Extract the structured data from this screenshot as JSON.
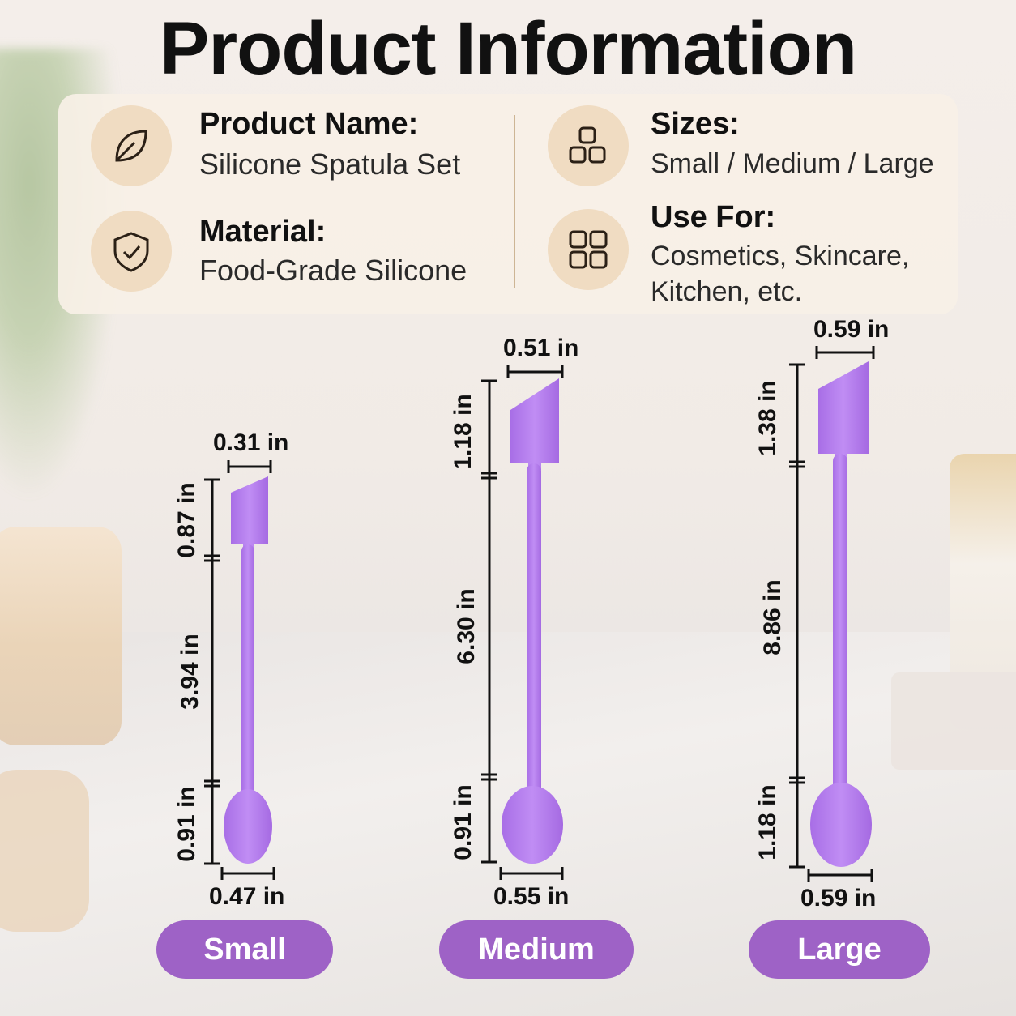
{
  "title": "Product Information",
  "info": {
    "product_name_label": "Product Name:",
    "product_name_value": "Silicone Spatula Set",
    "material_label": "Material:",
    "material_value": "Food-Grade Silicone",
    "sizes_label": "Sizes:",
    "sizes_value": "Small / Medium / Large",
    "use_for_label": "Use For:",
    "use_for_value_line1": "Cosmetics, Skincare,",
    "use_for_value_line2": "Kitchen, etc.",
    "icons": [
      "leaf-icon",
      "shield-check-icon",
      "cubes-icon",
      "grid-icon"
    ]
  },
  "sizes": [
    {
      "name": "Small",
      "head_width": "0.31 in",
      "head_length": "0.87 in",
      "handle_length": "3.94 in",
      "spoon_length": "0.91 in",
      "spoon_width": "0.47 in"
    },
    {
      "name": "Medium",
      "head_width": "0.51 in",
      "head_length": "1.18 in",
      "handle_length": "6.30 in",
      "spoon_length": "0.91 in",
      "spoon_width": "0.55 in"
    },
    {
      "name": "Large",
      "head_width": "0.59 in",
      "head_length": "1.38 in",
      "handle_length": "8.86 in",
      "spoon_length": "1.18 in",
      "spoon_width": "0.59 in"
    }
  ],
  "colors": {
    "spatula": "#b67ff0",
    "pill": "#9e62c6",
    "card": "#f8f0e6",
    "icon_bg": "#f0dcc2"
  }
}
